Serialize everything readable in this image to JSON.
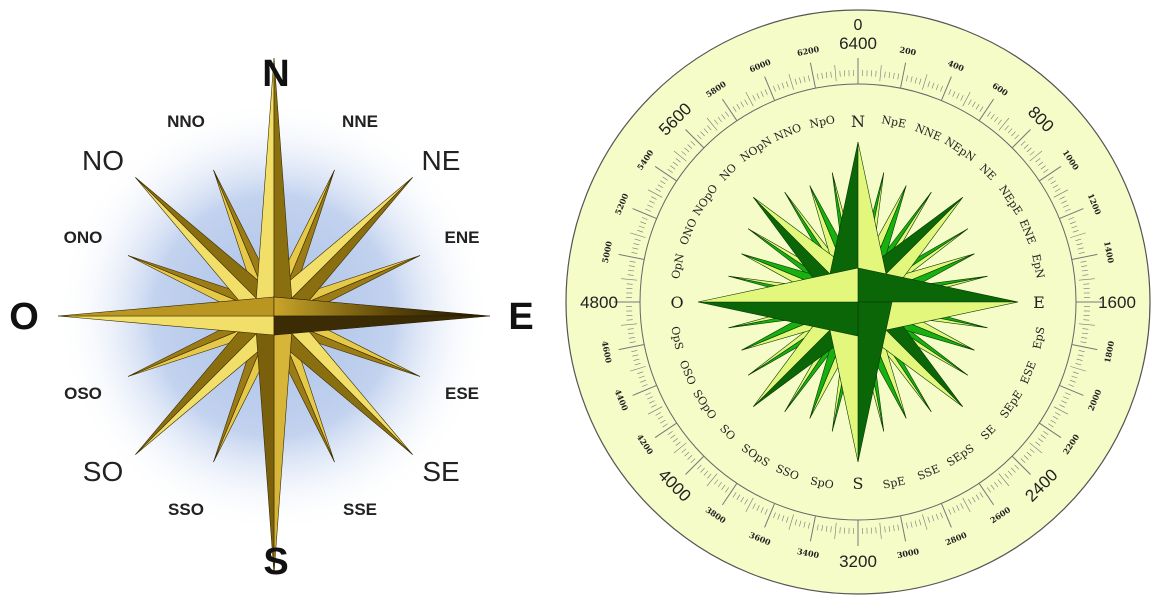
{
  "compass_left": {
    "cardinals": [
      "N",
      "E",
      "S",
      "O"
    ],
    "ordinals": [
      "NE",
      "SE",
      "SO",
      "NO"
    ],
    "secondary": [
      "NNE",
      "ENE",
      "ESE",
      "SSE",
      "SSO",
      "OSO",
      "ONO",
      "NNO"
    ],
    "colors": {
      "gold_light": "#f2df6a",
      "gold_dark": "#8a6f10",
      "glow": "#a9bfe6"
    }
  },
  "compass_right": {
    "points": [
      "N",
      "NpE",
      "NNE",
      "NEpN",
      "NE",
      "NEpE",
      "ENE",
      "EpN",
      "E",
      "EpS",
      "ESE",
      "SEpE",
      "SE",
      "SEpS",
      "SSE",
      "SpE",
      "S",
      "SpO",
      "SSO",
      "SOpS",
      "SO",
      "SOpO",
      "OSO",
      "OpS",
      "O",
      "OpN",
      "ONO",
      "NOpO",
      "NO",
      "NOpN",
      "NNO",
      "NpO"
    ],
    "mils_major": [
      "6400",
      "800",
      "1600",
      "2400",
      "3200",
      "4000",
      "4800",
      "5600"
    ],
    "top_zero": "0",
    "mils_minor": [
      "200",
      "400",
      "600",
      "1000",
      "1200",
      "1400",
      "1800",
      "2000",
      "2200",
      "2600",
      "2800",
      "3000",
      "3400",
      "3600",
      "3800",
      "4200",
      "4400",
      "4600",
      "5000",
      "5200",
      "5400",
      "5800",
      "6000",
      "6200"
    ],
    "colors": {
      "background": "#f5fcc8",
      "dark_green": "#0b6608",
      "mid_green": "#17b00f",
      "light_green": "#e2f77c"
    }
  }
}
